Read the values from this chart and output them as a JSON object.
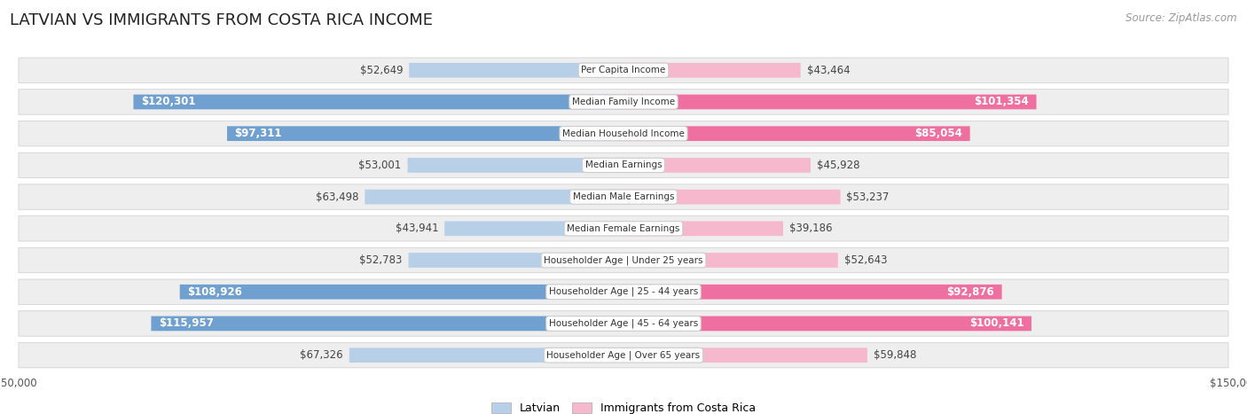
{
  "title": "LATVIAN VS IMMIGRANTS FROM COSTA RICA INCOME",
  "source": "Source: ZipAtlas.com",
  "categories": [
    "Per Capita Income",
    "Median Family Income",
    "Median Household Income",
    "Median Earnings",
    "Median Male Earnings",
    "Median Female Earnings",
    "Householder Age | Under 25 years",
    "Householder Age | 25 - 44 years",
    "Householder Age | 45 - 64 years",
    "Householder Age | Over 65 years"
  ],
  "latvian_values": [
    52649,
    120301,
    97311,
    53001,
    63498,
    43941,
    52783,
    108926,
    115957,
    67326
  ],
  "costa_rica_values": [
    43464,
    101354,
    85054,
    45928,
    53237,
    39186,
    52643,
    92876,
    100141,
    59848
  ],
  "latvian_labels": [
    "$52,649",
    "$120,301",
    "$97,311",
    "$53,001",
    "$63,498",
    "$43,941",
    "$52,783",
    "$108,926",
    "$115,957",
    "$67,326"
  ],
  "costa_rica_labels": [
    "$43,464",
    "$101,354",
    "$85,054",
    "$45,928",
    "$53,237",
    "$39,186",
    "$52,643",
    "$92,876",
    "$100,141",
    "$59,848"
  ],
  "latvian_color_light": "#b8cfe8",
  "latvian_color_dark": "#6fa0d0",
  "costa_rica_color_light": "#f5b8cc",
  "costa_rica_color_dark": "#ef6fa0",
  "inside_label_threshold": 75000,
  "max_value": 150000,
  "background_color": "#ffffff",
  "row_bg_color": "#eeeeee",
  "title_fontsize": 13,
  "label_fontsize": 8.5,
  "legend_fontsize": 9,
  "source_fontsize": 8.5
}
